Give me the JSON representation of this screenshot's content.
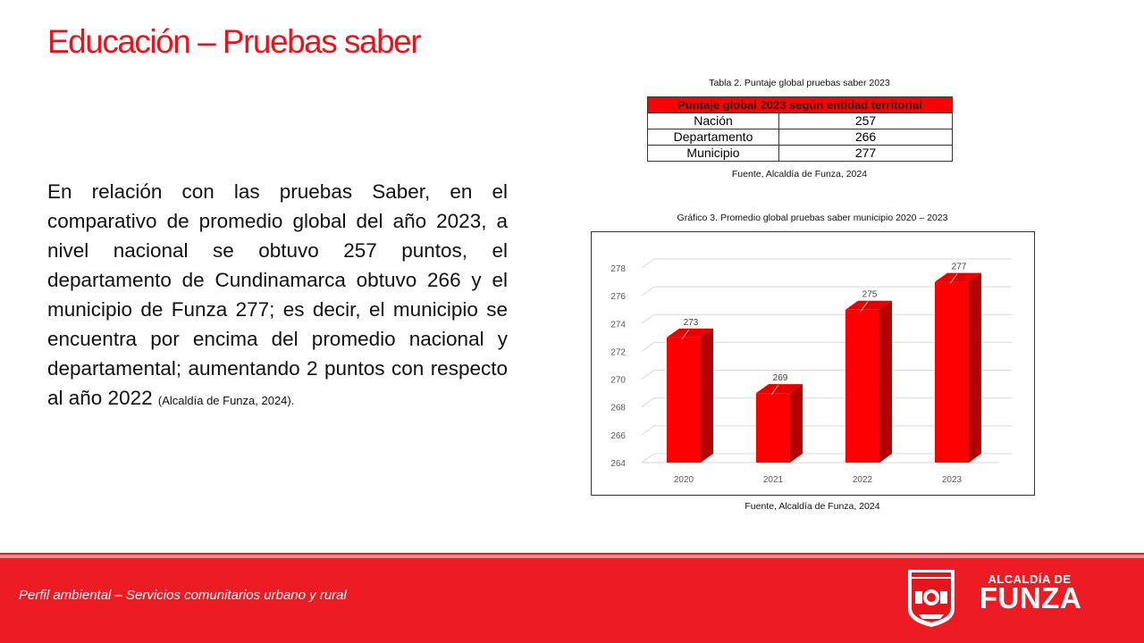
{
  "page": {
    "title": "Educación – Pruebas saber",
    "body_text": "En relación con las pruebas Saber, en el comparativo de promedio global del año 2023, a nivel nacional se obtuvo 257 puntos, el departamento de Cundinamarca obtuvo 266 y el municipio de Funza 277; es decir, el municipio se encuentra por encima del promedio nacional y departamental; aumentando 2 puntos con respecto al año 2022",
    "body_citation": "(Alcaldía de Funza, 2024)."
  },
  "table": {
    "caption": "Tabla 2. Puntaje global pruebas saber 2023",
    "header": "Puntaje global 2023 según entidad territorial",
    "header_color": "#ff0000",
    "rows": [
      {
        "label": "Nación",
        "value": "257"
      },
      {
        "label": "Departamento",
        "value": "266"
      },
      {
        "label": "Municipio",
        "value": "277"
      }
    ],
    "source": "Fuente, Alcaldía de Funza, 2024"
  },
  "chart_caption": "Gráfico 3. Promedio global pruebas saber municipio 2020 – 2023",
  "chart_source": "Fuente, Alcaldía de Funza, 2024",
  "chart_data": {
    "type": "bar",
    "title": "",
    "xlabel": "",
    "ylabel": "",
    "categories": [
      "2020",
      "2021",
      "2022",
      "2023"
    ],
    "values": [
      273,
      269,
      275,
      277
    ],
    "data_labels": [
      "273",
      "269",
      "275",
      "277"
    ],
    "ylim": [
      264,
      278
    ],
    "yticks": [
      "264",
      "266",
      "268",
      "270",
      "272",
      "274",
      "276",
      "278"
    ],
    "grid": true,
    "style": "3d",
    "bar_color": "#ff0000",
    "bar_side_color": "#b30000",
    "bar_top_color": "#e60000"
  },
  "footer": {
    "text": "Perfil ambiental – Servicios comunitarios urbano y rural",
    "background_color": "#ed1c24",
    "logo_sub": "ALCALDÍA DE",
    "logo_main": "FUNZA"
  }
}
